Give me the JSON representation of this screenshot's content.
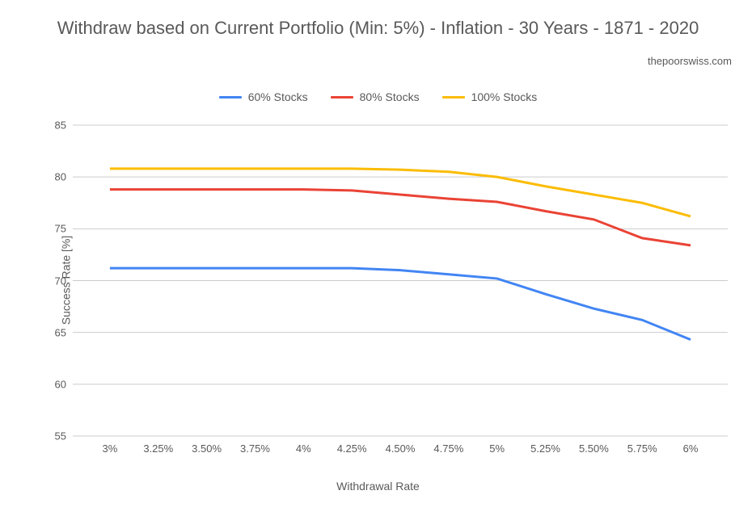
{
  "chart": {
    "type": "line",
    "title": "Withdraw based on Current Portfolio (Min: 5%) - Inflation - 30 Years - 1871 - 2020",
    "subtitle": "thepoorswiss.com",
    "x_axis": {
      "title": "Withdrawal Rate",
      "categories": [
        "3%",
        "3.25%",
        "3.50%",
        "3.75%",
        "4%",
        "4.25%",
        "4.50%",
        "4.75%",
        "5%",
        "5.25%",
        "5.50%",
        "5.75%",
        "6%"
      ]
    },
    "y_axis": {
      "title": "Success Rate [%]",
      "min": 55,
      "max": 85,
      "tick_step": 5,
      "ticks": [
        55,
        60,
        65,
        70,
        75,
        80,
        85
      ]
    },
    "series": [
      {
        "name": "60% Stocks",
        "color": "#4285f4",
        "values": [
          71.2,
          71.2,
          71.2,
          71.2,
          71.2,
          71.2,
          71.0,
          70.6,
          70.2,
          68.7,
          67.3,
          66.2,
          64.3
        ]
      },
      {
        "name": "80% Stocks",
        "color": "#ea4335",
        "values": [
          78.8,
          78.8,
          78.8,
          78.8,
          78.8,
          78.7,
          78.3,
          77.9,
          77.6,
          76.7,
          75.9,
          74.1,
          73.4
        ]
      },
      {
        "name": "100% Stocks",
        "color": "#fbbc04",
        "values": [
          80.8,
          80.8,
          80.8,
          80.8,
          80.8,
          80.8,
          80.7,
          80.5,
          80.0,
          79.1,
          78.3,
          77.5,
          76.2
        ]
      }
    ],
    "background_color": "#ffffff",
    "grid_color": "#cccccc",
    "text_color": "#595959",
    "title_fontsize": 22,
    "label_fontsize": 14,
    "tick_fontsize": 13,
    "line_width": 3
  }
}
